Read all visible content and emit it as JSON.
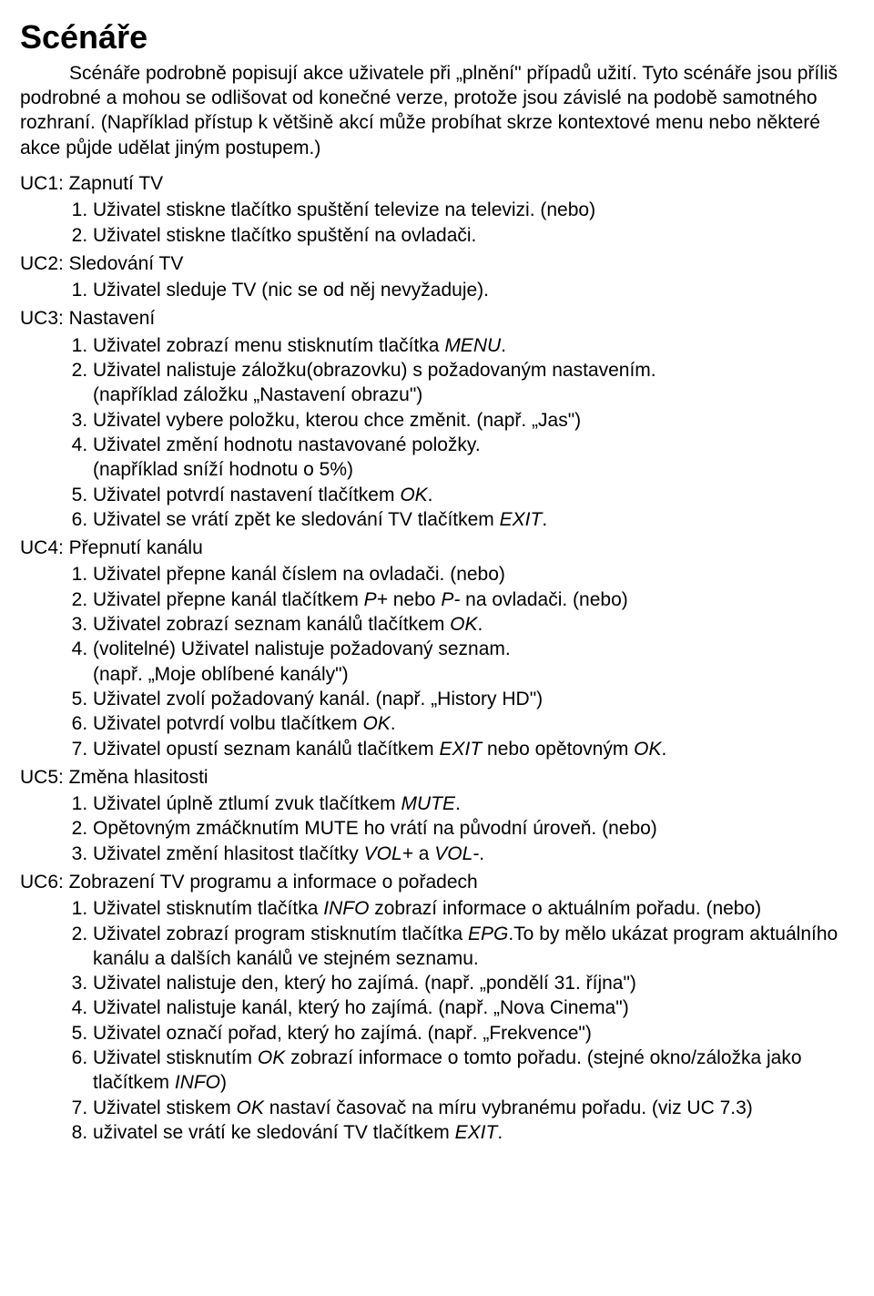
{
  "title": "Scénáře",
  "intro": "Scénáře podrobně popisují akce uživatele při „plnění\" případů užití. Tyto scénáře jsou příliš podrobné a mohou se odlišovat od konečné verze, protože jsou závislé na podobě samotného rozhraní. (Například přístup k většině akcí může probíhat skrze kontextové menu nebo některé akce půjde udělat jiným postupem.)",
  "uc1": {
    "title": "UC1: Zapnutí TV",
    "items": [
      "Uživatel stiskne tlačítko spuštění televize na televizi. (nebo)",
      "Uživatel stiskne tlačítko spuštění na ovladači."
    ]
  },
  "uc2": {
    "title": "UC2: Sledování TV",
    "items": [
      "Uživatel sleduje TV (nic se od něj nevyžaduje)."
    ]
  },
  "uc3": {
    "title": "UC3: Nastavení",
    "i1a": "Uživatel zobrazí menu stisknutím tlačítka ",
    "i1b": "MENU",
    "i1c": ".",
    "i2": "Uživatel nalistuje záložku(obrazovku) s požadovaným nastavením.",
    "i2sub": "(například záložku „Nastavení obrazu\")",
    "i3": "Uživatel vybere položku, kterou chce změnit. (např. „Jas\")",
    "i4": "Uživatel změní hodnotu nastavované položky.",
    "i4sub": "(například sníží hodnotu o 5%)",
    "i5a": "Uživatel potvrdí nastavení tlačítkem ",
    "i5b": "OK",
    "i5c": ".",
    "i6a": "Uživatel se vrátí zpět ke sledování TV tlačítkem ",
    "i6b": "EXIT",
    "i6c": "."
  },
  "uc4": {
    "title": "UC4: Přepnutí kanálu",
    "i1": "Uživatel přepne kanál číslem na ovladači. (nebo)",
    "i2a": "Uživatel přepne kanál tlačítkem ",
    "i2b": "P+",
    "i2c": " nebo ",
    "i2d": "P-",
    "i2e": " na ovladači. (nebo)",
    "i3a": "Uživatel zobrazí seznam kanálů tlačítkem ",
    "i3b": "OK",
    "i3c": ".",
    "i4": "(volitelné) Uživatel nalistuje požadovaný seznam.",
    "i4sub": "(např. „Moje oblíbené kanály\")",
    "i5": "Uživatel zvolí požadovaný kanál. (např. „History HD\")",
    "i6a": "Uživatel potvrdí volbu tlačítkem ",
    "i6b": "OK",
    "i6c": ".",
    "i7a": "Uživatel opustí seznam kanálů tlačítkem ",
    "i7b": "EXIT",
    "i7c": " nebo opětovným ",
    "i7d": "OK",
    "i7e": "."
  },
  "uc5": {
    "title": "UC5: Změna hlasitosti",
    "i1a": " Uživatel úplně ztlumí zvuk tlačítkem ",
    "i1b": "MUTE",
    "i1c": ".",
    "i2a": " Opětovným zmáčknutím ",
    "i2b": "MUTE",
    "i2c": " ho vrátí na původní úroveň. (nebo)",
    "i3a": "Uživatel změní hlasitost tlačítky ",
    "i3b": "VOL+",
    "i3c": " a ",
    "i3d": "VOL-",
    "i3e": "."
  },
  "uc6": {
    "title": "UC6: Zobrazení TV programu a informace o pořadech",
    "i1a": "Uživatel stisknutím tlačítka ",
    "i1b": "INFO",
    "i1c": " zobrazí informace o aktuálním pořadu. (nebo)",
    "i2a": "Uživatel zobrazí program stisknutím tlačítka ",
    "i2b": "EPG",
    "i2c": ".To by mělo ukázat program aktuálního kanálu a dalších kanálů ve stejném seznamu.",
    "i3": "Uživatel nalistuje den, který ho zajímá. (např. „pondělí 31. října\")",
    "i4": "Uživatel nalistuje kanál, který ho zajímá. (např. „Nova Cinema\")",
    "i5": "Uživatel označí pořad, který ho zajímá. (např. „Frekvence\")",
    "i6a": "Uživatel stisknutím ",
    "i6b": "OK",
    "i6c": " zobrazí informace o tomto pořadu. (stejné okno/záložka jako tlačítkem ",
    "i6d": "INFO",
    "i6e": ")",
    "i7a": "Uživatel stiskem ",
    "i7b": "OK",
    "i7c": " nastaví časovač na míru vybranému pořadu. (viz UC 7.3)",
    "i8a": "uživatel se vrátí ke sledování TV tlačítkem ",
    "i8b": "EXIT",
    "i8c": "."
  }
}
